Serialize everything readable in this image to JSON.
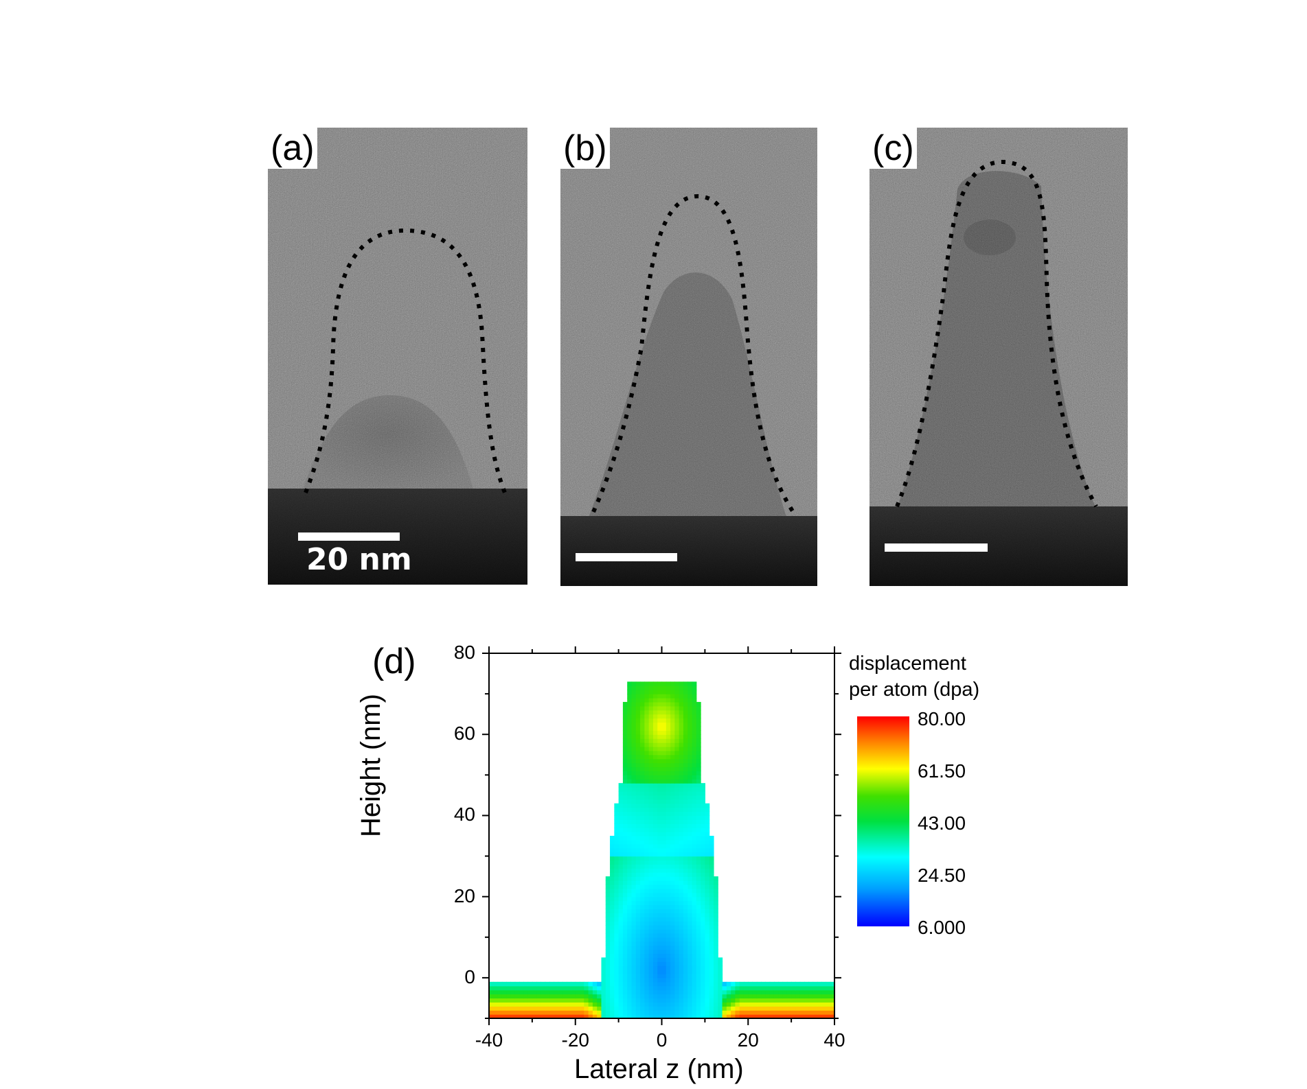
{
  "figure": {
    "panels": [
      {
        "label": "(a)",
        "scale_bar_text": "20 nm"
      },
      {
        "label": "(b)",
        "scale_bar_text": ""
      },
      {
        "label": "(c)",
        "scale_bar_text": ""
      }
    ]
  },
  "chart_data": {
    "type": "heatmap",
    "panel_label": "(d)",
    "xlabel": "Lateral z (nm)",
    "ylabel": "Height (nm)",
    "xlim": [
      -40,
      40
    ],
    "ylim": [
      -10,
      80
    ],
    "xticks": [
      "-40",
      "-20",
      "0",
      "20",
      "40"
    ],
    "yticks": [
      "0",
      "20",
      "40",
      "60",
      "80"
    ],
    "colorbar": {
      "title": "displacement per atom (dpa)",
      "title_lines": [
        "displacement",
        "per atom (dpa)"
      ],
      "min": 6.0,
      "max": 80.0,
      "tick_labels": [
        "80.00",
        "61.50",
        "43.00",
        "24.50",
        "6.000"
      ],
      "colormap": [
        "#0000ff",
        "#00c8ff",
        "#00ffc0",
        "#00e000",
        "#c8f000",
        "#ffb000",
        "#ff0000"
      ]
    },
    "regions": [
      {
        "name": "substrate",
        "z_range": [
          -40,
          40
        ],
        "height_range": [
          -10,
          -1
        ],
        "dpa_surface": 30,
        "dpa_deep": 78
      },
      {
        "name": "fin_base",
        "z_range": [
          -14,
          14
        ],
        "height_range": [
          -10,
          30
        ],
        "dpa": 22
      },
      {
        "name": "fin_middle",
        "z_range": [
          -12,
          12
        ],
        "height_range": [
          30,
          48
        ],
        "dpa": 35
      },
      {
        "name": "fin_top",
        "z_range": [
          -9,
          8
        ],
        "height_range": [
          48,
          73
        ],
        "dpa": 55
      }
    ]
  },
  "colors": {
    "scale_bar": "#ffffff",
    "dotted_outline": "#000000"
  }
}
